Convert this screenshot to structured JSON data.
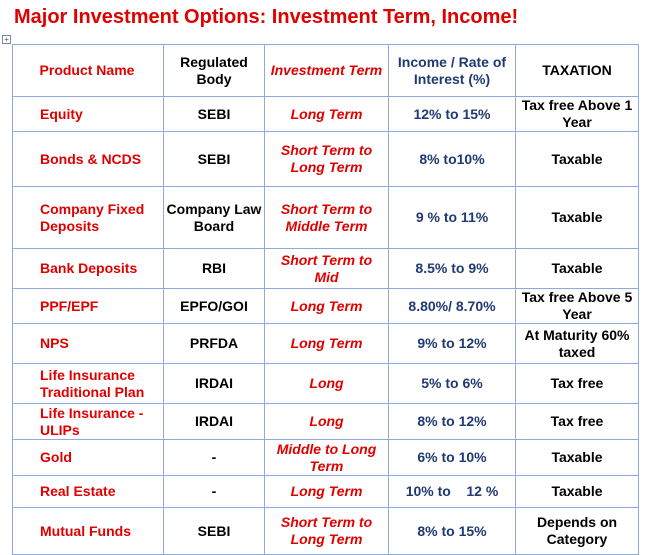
{
  "title": "Major Investment Options: Investment Term, Income!",
  "headers": {
    "product": "Product Name",
    "body": "Regulated Body",
    "term": "Investment Term",
    "rate": "Income / Rate of Interest (%)",
    "tax": "TAXATION"
  },
  "rows": [
    {
      "product": "Equity",
      "body": "SEBI",
      "term": "Long Term",
      "rate": "12% to 15%",
      "tax": "Tax free Above 1 Year"
    },
    {
      "product": "Bonds & NCDS",
      "body": "SEBI",
      "term": "Short Term to Long Term",
      "rate": "8% to10%",
      "tax": "Taxable"
    },
    {
      "product": "Company Fixed Deposits",
      "body": "Company Law Board",
      "term": "Short Term to Middle Term",
      "rate": "9 % to 11%",
      "tax": "Taxable"
    },
    {
      "product": "Bank Deposits",
      "body": "RBI",
      "term": "Short Term to Mid",
      "rate": "8.5% to 9%",
      "tax": "Taxable"
    },
    {
      "product": "PPF/EPF",
      "body": "EPFO/GOI",
      "term": "Long Term",
      "rate": "8.80%/ 8.70%",
      "tax": "Tax free Above 5 Year"
    },
    {
      "product": "NPS",
      "body": "PRFDA",
      "term": "Long Term",
      "rate": "9% to 12%",
      "tax": "At Maturity 60%   taxed"
    },
    {
      "product": "Life Insurance Traditional Plan",
      "body": "IRDAI",
      "term": "Long",
      "rate": "5% to 6%",
      "tax": "Tax free"
    },
    {
      "product": "Life Insurance - ULIPs",
      "body": "IRDAI",
      "term": "Long",
      "rate": "8% to 12%",
      "tax": "Tax free"
    },
    {
      "product": "Gold",
      "body": "-",
      "term": "Middle to Long Term",
      "rate": "6% to 10%",
      "tax": "Taxable"
    },
    {
      "product": "Real Estate",
      "body": "-",
      "term": "Long Term",
      "rate": "10% to    12 %",
      "tax": "Taxable"
    },
    {
      "product": "Mutual Funds",
      "body": "SEBI",
      "term": "Short Term to Long Term",
      "rate": "8% to 15%",
      "tax": "Depends on Category"
    }
  ]
}
